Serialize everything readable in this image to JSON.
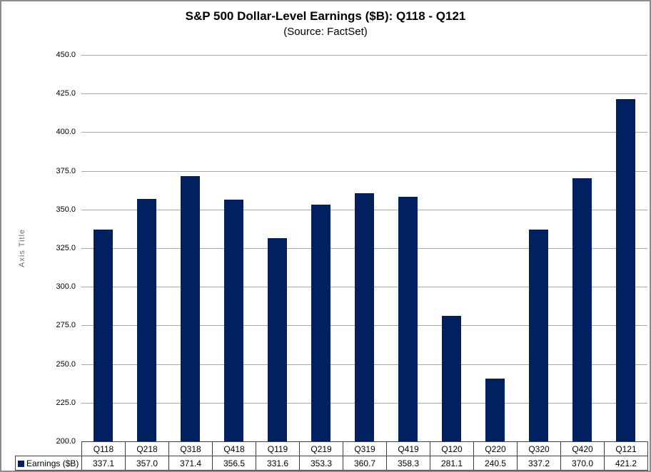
{
  "chart_data": {
    "type": "bar",
    "title": "S&P 500 Dollar-Level Earnings ($B): Q118 - Q121",
    "subtitle": "(Source: FactSet)",
    "xlabel": "",
    "ylabel": "Axis Title",
    "categories": [
      "Q118",
      "Q218",
      "Q318",
      "Q418",
      "Q119",
      "Q219",
      "Q319",
      "Q419",
      "Q120",
      "Q220",
      "Q320",
      "Q420",
      "Q121"
    ],
    "series": [
      {
        "name": "Earnings ($B)",
        "values": [
          337.1,
          357.0,
          371.4,
          356.5,
          331.6,
          353.3,
          360.7,
          358.3,
          281.1,
          240.5,
          337.2,
          370.0,
          421.2
        ]
      }
    ],
    "ylim": [
      200.0,
      450.0
    ],
    "ytick_step": 25.0,
    "ytick_labels": [
      "200.0",
      "225.0",
      "250.0",
      "275.0",
      "300.0",
      "325.0",
      "350.0",
      "375.0",
      "400.0",
      "425.0",
      "450.0"
    ],
    "grid": true,
    "legend_position": "bottom-left-of-data-table",
    "data_table_shown": true
  },
  "colors": {
    "bar": "#002060",
    "gridline": "#a6a6a6",
    "table_border": "#404040",
    "axis_title_text": "#6e6e6e",
    "chart_border": "#8c8c8c",
    "background": "#ffffff"
  }
}
